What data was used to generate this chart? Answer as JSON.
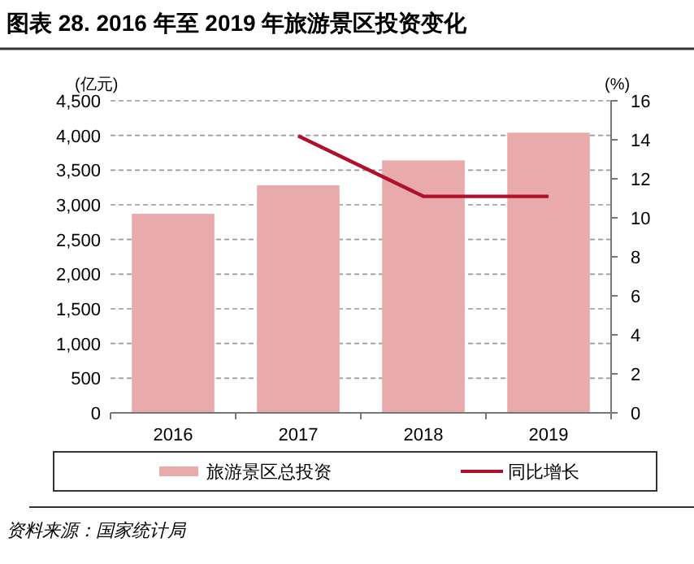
{
  "chart_data": {
    "type": "bar",
    "title": "图表 28. 2016 年至 2019 年旅游景区投资变化",
    "categories": [
      "2016",
      "2017",
      "2018",
      "2019"
    ],
    "series": [
      {
        "name": "旅游景区总投资",
        "color": "#e8aaaa",
        "values": [
          2870,
          3280,
          3640,
          4040
        ]
      },
      {
        "name": "同比增长",
        "type": "line",
        "axis": "y2",
        "color": "#b0102a",
        "values": [
          null,
          14.2,
          11.1,
          11.1
        ]
      }
    ],
    "ylabel": "(亿元)",
    "y2label": "(%)",
    "ylim": [
      0,
      4500
    ],
    "yticks": [
      {
        "value": 0,
        "label": "0"
      },
      {
        "value": 500,
        "label": "500"
      },
      {
        "value": 1000,
        "label": "1,000"
      },
      {
        "value": 1500,
        "label": "1,500"
      },
      {
        "value": 2000,
        "label": "2,000"
      },
      {
        "value": 2500,
        "label": "2,500"
      },
      {
        "value": 3000,
        "label": "3,000"
      },
      {
        "value": 3500,
        "label": "3,500"
      },
      {
        "value": 4000,
        "label": "4,000"
      },
      {
        "value": 4500,
        "label": "4,500"
      }
    ],
    "y2lim": [
      0,
      16
    ],
    "y2ticks": [
      0,
      2,
      4,
      6,
      8,
      10,
      12,
      14,
      16
    ],
    "grid": "y",
    "legend": "bottom",
    "marker": "none",
    "line_style": "solid",
    "annotations": [
      "资料来源：国家统计局"
    ]
  }
}
